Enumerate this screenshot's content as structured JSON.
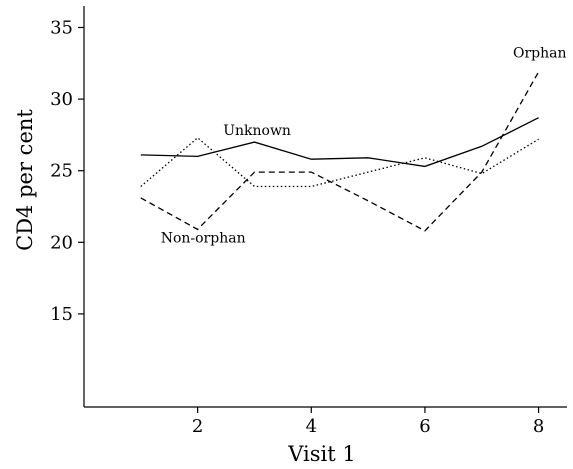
{
  "chart_data": {
    "type": "line",
    "xlabel": "Visit 1",
    "ylabel": "CD4 per cent",
    "xlim": [
      0,
      8.5
    ],
    "ylim": [
      8.5,
      36.5
    ],
    "x_ticks": [
      2,
      4,
      6,
      8
    ],
    "y_ticks": [
      15,
      20,
      25,
      30,
      35
    ],
    "grid": false,
    "legend": "none",
    "series": [
      {
        "name": "Unknown",
        "style": "solid",
        "x": [
          1,
          2,
          3,
          4,
          5,
          6,
          7,
          8
        ],
        "values": [
          26.1,
          26.0,
          27.0,
          25.8,
          25.9,
          25.3,
          26.7,
          28.7
        ]
      },
      {
        "name": "Orphan",
        "style": "dashed",
        "x": [
          1,
          2,
          3,
          4,
          5,
          6,
          7,
          8
        ],
        "values": [
          23.1,
          20.9,
          24.9,
          24.9,
          22.9,
          20.8,
          24.9,
          31.9
        ]
      },
      {
        "name": "Non-orphan",
        "style": "dotted",
        "x": [
          1,
          2,
          3,
          4,
          5,
          6,
          7,
          8
        ],
        "values": [
          23.9,
          27.3,
          23.9,
          23.9,
          24.9,
          25.9,
          24.8,
          27.2
        ]
      }
    ],
    "series_labels": [
      {
        "text": "Unknown",
        "at_x": 2.45,
        "at_y": 27.5
      },
      {
        "text": "Orphan",
        "at_x": 7.55,
        "at_y": 32.9
      },
      {
        "text": "Non-orphan",
        "at_x": 1.35,
        "at_y": 20.0
      }
    ],
    "colors": {
      "line": "#000000"
    }
  }
}
